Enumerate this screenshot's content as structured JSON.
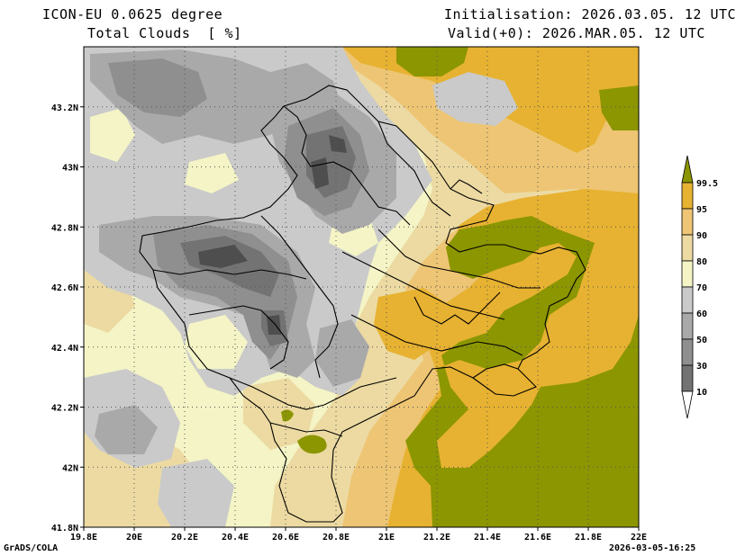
{
  "header": {
    "model": "ICON-EU 0.0625 degree",
    "variable": "Total Clouds  [ %]",
    "initialisation": "Initialisation: 2026.03.05. 12 UTC",
    "valid": "Valid(+0): 2026.MAR.05. 12 UTC"
  },
  "footer": {
    "credit": "GrADS/COLA",
    "timestamp": "2026-03-05-16:25"
  },
  "map": {
    "lon_ticks": [
      "19.8E",
      "20E",
      "20.2E",
      "20.4E",
      "20.6E",
      "20.8E",
      "21E",
      "21.2E",
      "21.4E",
      "21.6E",
      "21.8E",
      "22E"
    ],
    "lat_ticks": [
      "41.8N",
      "42N",
      "42.2N",
      "42.4N",
      "42.6N",
      "42.8N",
      "43N",
      "43.2N"
    ],
    "lon_range": [
      19.8,
      22.0
    ],
    "lat_range": [
      41.8,
      43.4
    ],
    "grid": "dotted"
  },
  "legend": {
    "levels": [
      "10",
      "30",
      "50",
      "60",
      "70",
      "80",
      "90",
      "95",
      "99.5"
    ],
    "colors": [
      "#4e4e4e",
      "#737373",
      "#8f8f8f",
      "#a9a9a9",
      "#cacaca",
      "#f4f4c6",
      "#ecdaa2",
      "#edc574",
      "#e7b231",
      "#8c9600"
    ]
  },
  "colors": {
    "olive": "#8c9600",
    "orange": "#e7b231",
    "light_orange": "#edc574",
    "tan": "#ecdaa2",
    "cream": "#f4f4c6",
    "light_gray": "#cacaca",
    "mid_gray": "#a9a9a9",
    "gray": "#8f8f8f",
    "dark_gray": "#737373",
    "darkest": "#4e4e4e"
  }
}
